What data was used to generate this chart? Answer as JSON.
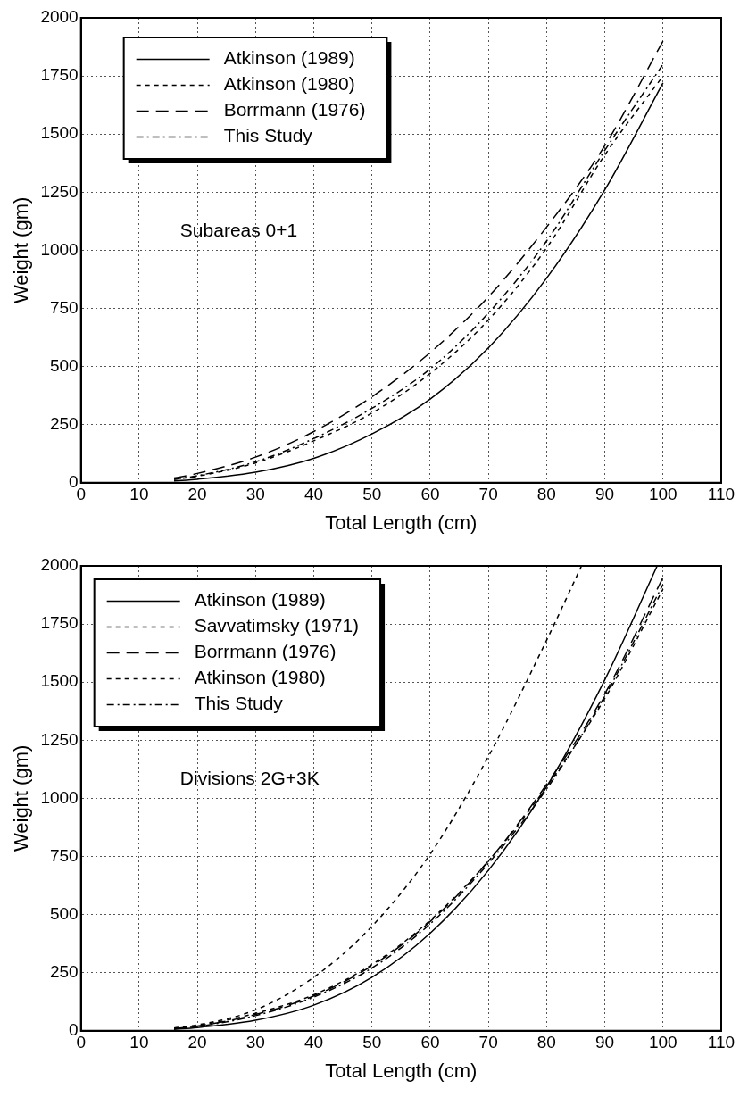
{
  "chart_data": [
    {
      "type": "line",
      "xlabel": "Total Length (cm)",
      "ylabel": "Weight (gm)",
      "xlim": [
        0,
        110
      ],
      "xticks": [
        0,
        10,
        20,
        30,
        40,
        50,
        60,
        70,
        80,
        90,
        100,
        110
      ],
      "ylim": [
        0,
        2000
      ],
      "yticks": [
        0,
        250,
        500,
        750,
        1000,
        1250,
        1500,
        1750,
        2000
      ],
      "grid": true,
      "legend": "top left",
      "marker": "none",
      "annotations": [
        "Subareas 0+1"
      ],
      "x": [
        16,
        20,
        30,
        40,
        50,
        60,
        70,
        80,
        90,
        100
      ],
      "series": [
        {
          "name": "Atkinson (1989)",
          "color": "#000000",
          "line_style": "solid",
          "values": [
            8,
            15,
            45,
            105,
            210,
            360,
            580,
            880,
            1260,
            1720
          ]
        },
        {
          "name": "Atkinson (1980)",
          "color": "#000000",
          "line_style": "dotted",
          "values": [
            15,
            28,
            85,
            180,
            300,
            470,
            700,
            1010,
            1410,
            1750
          ]
        },
        {
          "name": "Borrmann (1976)",
          "color": "#000000",
          "line_style": "dashed",
          "values": [
            20,
            40,
            110,
            220,
            370,
            560,
            800,
            1100,
            1450,
            1900
          ]
        },
        {
          "name": "This Study",
          "color": "#000000",
          "line_style": "dashdot",
          "values": [
            15,
            30,
            90,
            190,
            320,
            490,
            730,
            1040,
            1430,
            1800
          ]
        }
      ]
    },
    {
      "type": "line",
      "xlabel": "Total Length (cm)",
      "ylabel": "Weight (gm)",
      "xlim": [
        0,
        110
      ],
      "xticks": [
        0,
        10,
        20,
        30,
        40,
        50,
        60,
        70,
        80,
        90,
        100,
        110
      ],
      "ylim": [
        0,
        2000
      ],
      "yticks": [
        0,
        250,
        500,
        750,
        1000,
        1250,
        1500,
        1750,
        2000
      ],
      "grid": true,
      "legend": "top left",
      "marker": "none",
      "annotations": [
        "Divisions 2G+3K"
      ],
      "x": [
        16,
        20,
        30,
        40,
        50,
        60,
        70,
        80,
        90,
        100
      ],
      "series": [
        {
          "name": "Atkinson (1989)",
          "color": "#000000",
          "line_style": "solid",
          "x": [
            16,
            20,
            30,
            40,
            50,
            60,
            70,
            80,
            90,
            99
          ],
          "values": [
            6,
            14,
            45,
            110,
            230,
            420,
            690,
            1050,
            1510,
            2000
          ]
        },
        {
          "name": "Savvatimsky (1971)",
          "color": "#000000",
          "line_style": "dotted",
          "x": [
            16,
            20,
            30,
            40,
            50,
            60,
            70,
            80,
            86
          ],
          "values": [
            12,
            25,
            90,
            230,
            450,
            760,
            1180,
            1680,
            2000
          ]
        },
        {
          "name": "Borrmann (1976)",
          "color": "#000000",
          "line_style": "dashed",
          "values": [
            10,
            20,
            70,
            150,
            280,
            470,
            730,
            1060,
            1450,
            1950
          ]
        },
        {
          "name": "Atkinson (1980)",
          "color": "#000000",
          "line_style": "dotted",
          "values": [
            10,
            22,
            75,
            155,
            285,
            475,
            730,
            1050,
            1430,
            1900
          ]
        },
        {
          "name": "This Study",
          "color": "#000000",
          "line_style": "dashdot",
          "values": [
            8,
            18,
            65,
            145,
            270,
            460,
            720,
            1040,
            1440,
            1920
          ]
        }
      ]
    }
  ]
}
